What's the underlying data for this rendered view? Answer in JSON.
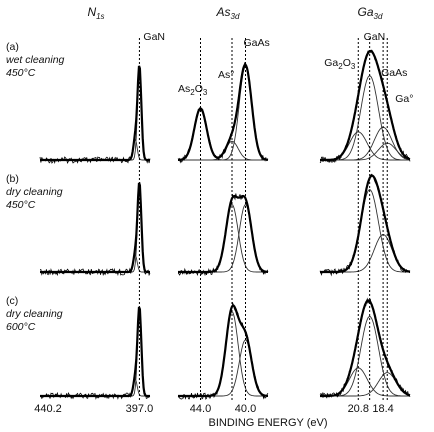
{
  "chart_data": {
    "type": "line",
    "xlabel": "BINDING ENERGY (eV)",
    "columns": [
      {
        "id": "N1s",
        "title_main": "N",
        "title_sub": "1s",
        "x_ticks": [
          {
            "label": "440.2",
            "value": 440.2
          },
          {
            "label": "397.0",
            "value": 397.0
          }
        ],
        "reference_lines": [
          397.0
        ],
        "peaks_labels": [
          "GaN"
        ],
        "components": [
          {
            "name": "GaN",
            "center": 397.0
          },
          {
            "name": "",
            "center": 399.0
          }
        ]
      },
      {
        "id": "As3d",
        "title_main": "As",
        "title_sub": "3d",
        "x_ticks": [
          {
            "label": "44.0",
            "value": 44.0
          },
          {
            "label": "40.0",
            "value": 40.0
          }
        ],
        "reference_lines": [
          44.0,
          41.2,
          40.0
        ],
        "peaks_labels": [
          "GaAs",
          "As°",
          "As2O3"
        ],
        "components": [
          {
            "name": "As2O3",
            "center": 44.0
          },
          {
            "name": "As°",
            "center": 41.2
          },
          {
            "name": "GaAs",
            "center": 40.0
          }
        ]
      },
      {
        "id": "Ga3d",
        "title_main": "Ga",
        "title_sub": "3d",
        "x_ticks": [
          {
            "label": "20.8",
            "value": 20.8
          },
          {
            "label": "18.4",
            "value": 18.4
          }
        ],
        "reference_lines": [
          20.8,
          19.7,
          18.4,
          18.0
        ],
        "peaks_labels": [
          "GaN",
          "Ga2O3",
          "GaAs",
          "Ga°"
        ],
        "components": [
          {
            "name": "Ga2O3",
            "center": 20.8
          },
          {
            "name": "GaN",
            "center": 19.7
          },
          {
            "name": "GaAs",
            "center": 18.4
          },
          {
            "name": "Ga°",
            "center": 18.0
          }
        ]
      }
    ],
    "rows": [
      {
        "label": "(a)",
        "line1": "wet cleaning",
        "line2": "450°C",
        "amplitudes": {
          "N1s": [
            1.0,
            0.22
          ],
          "As3d": [
            0.55,
            0.2,
            1.0
          ],
          "Ga3d": [
            0.3,
            0.9,
            0.35,
            0.18
          ]
        }
      },
      {
        "label": "(b)",
        "line1": "dry cleaning",
        "line2": "450°C",
        "amplitudes": {
          "N1s": [
            0.95,
            0.18
          ],
          "As3d": [
            0.0,
            0.72,
            0.72
          ],
          "Ga3d": [
            0.0,
            0.88,
            0.4,
            0.0
          ]
        }
      },
      {
        "label": "(c)",
        "line1": "dry cleaning",
        "line2": "600°C",
        "amplitudes": {
          "N1s": [
            0.95,
            0.18
          ],
          "As3d": [
            0.0,
            0.9,
            0.6
          ],
          "Ga3d": [
            0.3,
            0.85,
            0.0,
            0.25
          ]
        }
      }
    ]
  }
}
